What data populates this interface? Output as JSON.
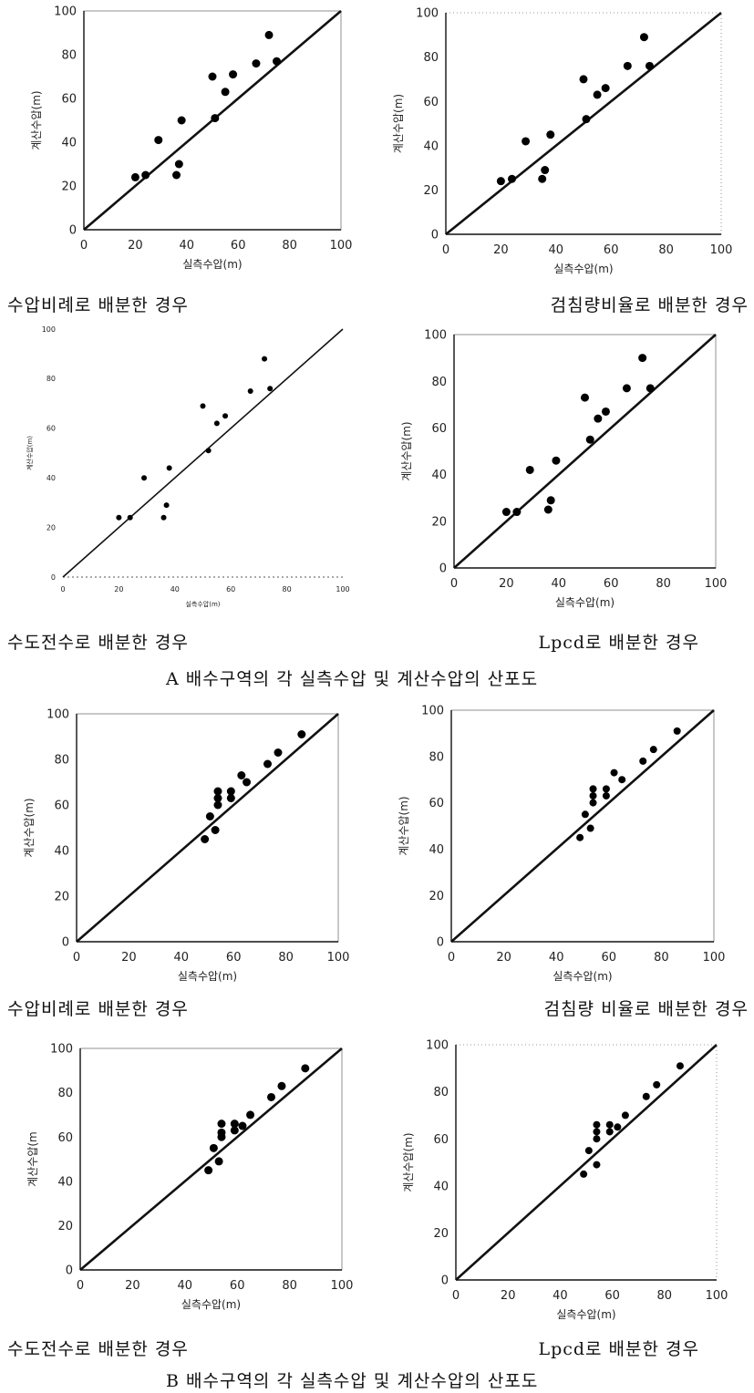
{
  "captions": [
    "수압비례로 배분한 경우",
    "검침량비율로 배분한 경우",
    "수도전수로 배분한 경우",
    "Lpcd로 배분한 경우",
    "수압비례로 배분한 경우",
    "검침량 비율로 배분한 경우",
    "수도전수로 배분한 경우",
    "Lpcd로 배분한 경우"
  ],
  "section_titles": {
    "a": "A 배수구역의 각 실측수압 및 계산수압의 산포도",
    "b": "B 배수구역의 각 실측수압 및 계산수압의 산포도"
  },
  "chart_data": [
    {
      "type": "scatter",
      "xlabel": "실측수압(m)",
      "ylabel": "계산수압(m)",
      "xlim": [
        0,
        100
      ],
      "ylim": [
        0,
        100
      ],
      "ticks": [
        0,
        20,
        40,
        60,
        80,
        100
      ],
      "reference_line": "y=x",
      "grid": false,
      "points": [
        [
          20,
          24
        ],
        [
          24,
          25
        ],
        [
          29,
          41
        ],
        [
          36,
          25
        ],
        [
          37,
          30
        ],
        [
          38,
          50
        ],
        [
          50,
          70
        ],
        [
          51,
          51
        ],
        [
          55,
          63
        ],
        [
          58,
          71
        ],
        [
          67,
          76
        ],
        [
          72,
          89
        ],
        [
          75,
          77
        ]
      ]
    },
    {
      "type": "scatter",
      "xlabel": "실측수압(m)",
      "ylabel": "계산수압(m)",
      "xlim": [
        0,
        100
      ],
      "ylim": [
        0,
        100
      ],
      "ticks": [
        0,
        20,
        40,
        60,
        80,
        100
      ],
      "reference_line": "y=x",
      "grid": false,
      "points": [
        [
          20,
          24
        ],
        [
          24,
          25
        ],
        [
          29,
          42
        ],
        [
          35,
          25
        ],
        [
          36,
          29
        ],
        [
          38,
          45
        ],
        [
          50,
          70
        ],
        [
          51,
          52
        ],
        [
          55,
          63
        ],
        [
          58,
          66
        ],
        [
          66,
          76
        ],
        [
          72,
          89
        ],
        [
          74,
          76
        ]
      ]
    },
    {
      "type": "scatter",
      "xlabel": "실측수압(m)",
      "ylabel": "계산수압(m)",
      "xlim": [
        0,
        100
      ],
      "ylim": [
        0,
        100
      ],
      "ticks": [
        0,
        20,
        40,
        60,
        80,
        100
      ],
      "reference_line": "y=x",
      "grid": false,
      "points": [
        [
          20,
          24
        ],
        [
          24,
          24
        ],
        [
          29,
          40
        ],
        [
          36,
          24
        ],
        [
          37,
          29
        ],
        [
          38,
          44
        ],
        [
          50,
          69
        ],
        [
          52,
          51
        ],
        [
          55,
          62
        ],
        [
          58,
          65
        ],
        [
          67,
          75
        ],
        [
          72,
          88
        ],
        [
          74,
          76
        ]
      ]
    },
    {
      "type": "scatter",
      "xlabel": "실측수압(m)",
      "ylabel": "계산수압(m)",
      "xlim": [
        0,
        100
      ],
      "ylim": [
        0,
        100
      ],
      "ticks": [
        0,
        20,
        40,
        60,
        80,
        100
      ],
      "reference_line": "y=x",
      "grid": false,
      "points": [
        [
          20,
          24
        ],
        [
          24,
          24
        ],
        [
          29,
          42
        ],
        [
          36,
          25
        ],
        [
          37,
          29
        ],
        [
          39,
          46
        ],
        [
          50,
          73
        ],
        [
          52,
          55
        ],
        [
          55,
          64
        ],
        [
          58,
          67
        ],
        [
          66,
          77
        ],
        [
          72,
          90
        ],
        [
          75,
          77
        ]
      ]
    },
    {
      "type": "scatter",
      "xlabel": "실측수압(m)",
      "ylabel": "계산수압(m)",
      "xlim": [
        0,
        100
      ],
      "ylim": [
        0,
        100
      ],
      "ticks": [
        0,
        20,
        40,
        60,
        80,
        100
      ],
      "reference_line": "y=x",
      "grid": false,
      "points": [
        [
          49,
          45
        ],
        [
          51,
          55
        ],
        [
          53,
          49
        ],
        [
          54,
          60
        ],
        [
          54,
          63
        ],
        [
          54,
          66
        ],
        [
          59,
          63
        ],
        [
          59,
          66
        ],
        [
          63,
          73
        ],
        [
          65,
          70
        ],
        [
          73,
          78
        ],
        [
          77,
          83
        ],
        [
          86,
          91
        ]
      ]
    },
    {
      "type": "scatter",
      "xlabel": "실측수압(m)",
      "ylabel": "계산수압(m)",
      "xlim": [
        0,
        100
      ],
      "ylim": [
        0,
        100
      ],
      "ticks": [
        0,
        20,
        40,
        60,
        80,
        100
      ],
      "reference_line": "y=x",
      "grid": false,
      "points": [
        [
          49,
          45
        ],
        [
          51,
          55
        ],
        [
          53,
          49
        ],
        [
          54,
          60
        ],
        [
          54,
          63
        ],
        [
          54,
          66
        ],
        [
          59,
          63
        ],
        [
          59,
          66
        ],
        [
          62,
          73
        ],
        [
          65,
          70
        ],
        [
          73,
          78
        ],
        [
          77,
          83
        ],
        [
          86,
          91
        ]
      ]
    },
    {
      "type": "scatter",
      "xlabel": "실측수압(m)",
      "ylabel": "계산수압(m",
      "xlim": [
        0,
        100
      ],
      "ylim": [
        0,
        100
      ],
      "ticks": [
        0,
        20,
        40,
        60,
        80,
        100
      ],
      "reference_line": "y=x",
      "grid": false,
      "points": [
        [
          49,
          45
        ],
        [
          51,
          55
        ],
        [
          53,
          49
        ],
        [
          54,
          60
        ],
        [
          54,
          62
        ],
        [
          54,
          66
        ],
        [
          59,
          63
        ],
        [
          59,
          66
        ],
        [
          62,
          65
        ],
        [
          65,
          70
        ],
        [
          73,
          78
        ],
        [
          77,
          83
        ],
        [
          86,
          91
        ]
      ]
    },
    {
      "type": "scatter",
      "xlabel": "실측수압(m)",
      "ylabel": "계산수압(m)",
      "xlim": [
        0,
        100
      ],
      "ylim": [
        0,
        100
      ],
      "ticks": [
        0,
        20,
        40,
        60,
        80,
        100
      ],
      "reference_line": "y=x",
      "grid": false,
      "points": [
        [
          49,
          45
        ],
        [
          51,
          55
        ],
        [
          54,
          49
        ],
        [
          54,
          60
        ],
        [
          54,
          63
        ],
        [
          54,
          66
        ],
        [
          59,
          63
        ],
        [
          59,
          66
        ],
        [
          62,
          65
        ],
        [
          65,
          70
        ],
        [
          73,
          78
        ],
        [
          77,
          83
        ],
        [
          86,
          91
        ]
      ]
    }
  ]
}
